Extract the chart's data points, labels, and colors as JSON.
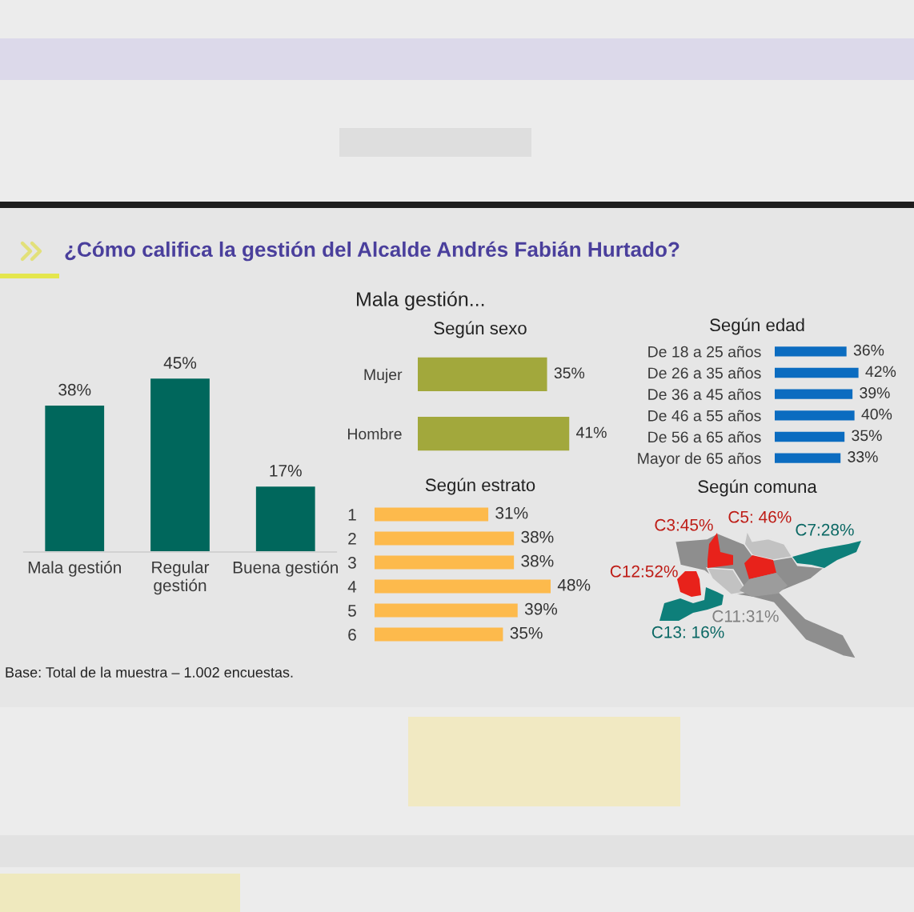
{
  "chart_data": [
    {
      "type": "bar",
      "title": "¿Cómo califica la gestión del Alcalde Andrés Fabián Hurtado?",
      "categories": [
        "Mala gestión",
        "Regular\ngestión",
        "Buena gestión"
      ],
      "values": [
        38,
        45,
        17
      ],
      "color": "#00675c",
      "value_labels": [
        "38%",
        "45%",
        "17%"
      ],
      "annotations": [
        "Base: Total de la muestra – 1.002 encuestas."
      ]
    },
    {
      "type": "bar",
      "orientation": "horizontal",
      "title": "Mala gestión...",
      "subtitle": "Según sexo",
      "categories": [
        "Mujer",
        "Hombre"
      ],
      "values": [
        35,
        41
      ],
      "color": "#a2a83c",
      "value_labels": [
        "35%",
        "41%"
      ]
    },
    {
      "type": "bar",
      "orientation": "horizontal",
      "title": "Según estrato",
      "categories": [
        "1",
        "2",
        "3",
        "4",
        "5",
        "6"
      ],
      "values": [
        31,
        38,
        38,
        48,
        39,
        35
      ],
      "color": "#fdba4c",
      "value_labels": [
        "31%",
        "38%",
        "38%",
        "48%",
        "39%",
        "35%"
      ]
    },
    {
      "type": "bar",
      "orientation": "horizontal",
      "title": "Según edad",
      "categories": [
        "De 18 a 25 años",
        "De 26 a 35 años",
        "De 36 a 45 años",
        "De 46 a 55 años",
        "De 56 a 65 años",
        "Mayor de 65 años"
      ],
      "values": [
        36,
        42,
        39,
        40,
        35,
        33
      ],
      "color": "#0b6cc0",
      "value_labels": [
        "36%",
        "42%",
        "39%",
        "40%",
        "35%",
        "33%"
      ]
    },
    {
      "type": "other",
      "title": "Según comuna",
      "categories": [
        "C3",
        "C5",
        "C7",
        "C12",
        "C11",
        "C13"
      ],
      "values": [
        45,
        46,
        28,
        52,
        31,
        16
      ],
      "value_labels": [
        ":45%",
        ": 46%",
        ":28%",
        ":52%",
        ":31%",
        ": 16%"
      ],
      "colors": [
        "#e8221b",
        "#e8221b",
        "#0e7f7a",
        "#e8221b",
        "#9c9c9c",
        "#0e7f7a"
      ]
    }
  ]
}
